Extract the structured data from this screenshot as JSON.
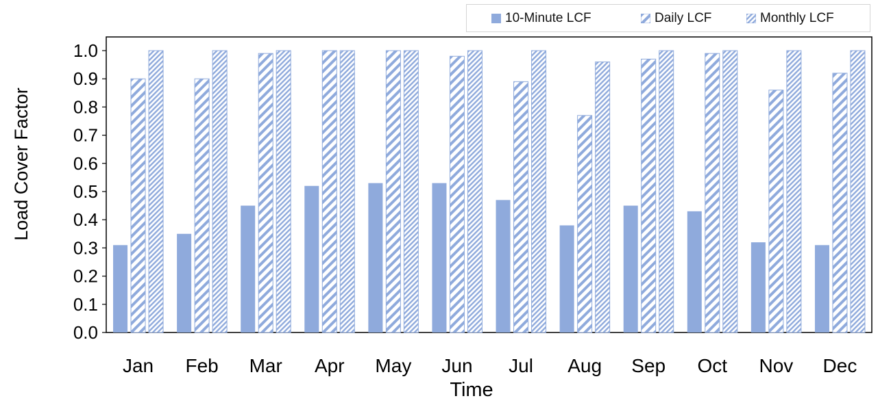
{
  "chart_data": {
    "type": "bar",
    "title": "",
    "xlabel": "Time",
    "ylabel": "Load Cover Factor",
    "ylim": [
      0,
      1
    ],
    "y_ticks": [
      "0.0",
      "0.1",
      "0.2",
      "0.3",
      "0.4",
      "0.5",
      "0.6",
      "0.7",
      "0.8",
      "0.9",
      "1.0"
    ],
    "categories": [
      "Jan",
      "Feb",
      "Mar",
      "Apr",
      "May",
      "Jun",
      "Jul",
      "Aug",
      "Sep",
      "Oct",
      "Nov",
      "Dec"
    ],
    "legend_position": "top-right",
    "grid": false,
    "series": [
      {
        "name": "10-Minute LCF",
        "pattern": "solid",
        "color": "#8faadc",
        "values": [
          0.31,
          0.35,
          0.45,
          0.52,
          0.53,
          0.53,
          0.47,
          0.38,
          0.45,
          0.43,
          0.32,
          0.31
        ]
      },
      {
        "name": "Daily LCF",
        "pattern": "diagonal-hatch",
        "color": "#8faadc",
        "values": [
          0.9,
          0.9,
          0.99,
          1.0,
          1.0,
          0.98,
          0.89,
          0.77,
          0.97,
          0.99,
          0.86,
          0.92
        ]
      },
      {
        "name": "Monthly LCF",
        "pattern": "dense-hatch",
        "color": "#8faadc",
        "values": [
          1.0,
          1.0,
          1.0,
          1.0,
          1.0,
          1.0,
          1.0,
          0.96,
          1.0,
          1.0,
          1.0,
          1.0
        ]
      }
    ]
  }
}
